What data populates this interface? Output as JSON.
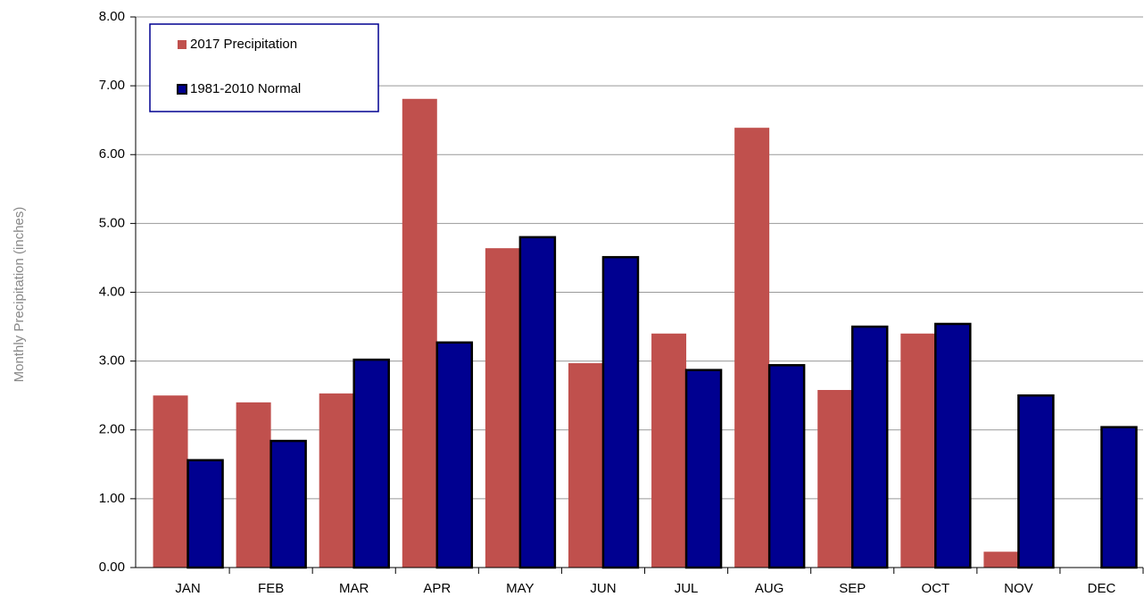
{
  "chart_data": {
    "type": "bar",
    "y_label": "Monthly Precipitation (inches)",
    "categories": [
      "JAN",
      "FEB",
      "MAR",
      "APR",
      "MAY",
      "JUN",
      "JUL",
      "AUG",
      "SEP",
      "OCT",
      "NOV",
      "DEC"
    ],
    "series": [
      {
        "name": "2017 Precipitation",
        "color": "#c0504d",
        "values": [
          2.5,
          2.4,
          2.53,
          6.81,
          4.64,
          2.97,
          3.4,
          6.39,
          2.58,
          3.4,
          0.23,
          0.0
        ]
      },
      {
        "name": "1981-2010 Normal",
        "color": "#000090",
        "values": [
          1.56,
          1.84,
          3.02,
          3.27,
          4.8,
          4.51,
          2.87,
          2.94,
          3.5,
          3.54,
          2.5,
          2.04
        ]
      }
    ],
    "ylim": [
      0,
      8
    ],
    "yticks": [
      {
        "value": 0,
        "label": "0.00"
      },
      {
        "value": 1,
        "label": "1.00"
      },
      {
        "value": 2,
        "label": "2.00"
      },
      {
        "value": 3,
        "label": "3.00"
      },
      {
        "value": 4,
        "label": "4.00"
      },
      {
        "value": 5,
        "label": "5.00"
      },
      {
        "value": 6,
        "label": "6.00"
      },
      {
        "value": 7,
        "label": "7.00"
      },
      {
        "value": 8,
        "label": "8.00"
      }
    ],
    "grid": true,
    "legend": "top-left"
  }
}
